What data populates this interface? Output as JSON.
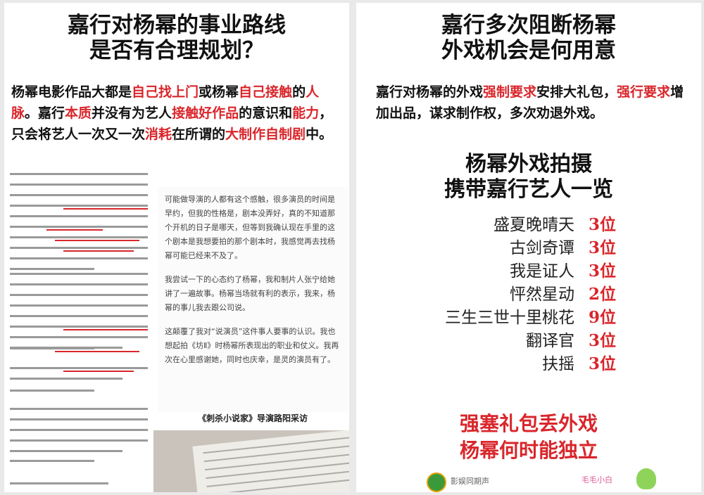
{
  "left": {
    "headline_line1": "嘉行对杨幂的事业路线",
    "headline_line2": "是否有合理规划？",
    "lead_parts": [
      {
        "t": "杨幂电影作品大都是",
        "hl": false
      },
      {
        "t": "自己找上门",
        "hl": true
      },
      {
        "t": "或杨幂",
        "hl": false
      },
      {
        "t": "自己接触",
        "hl": true
      },
      {
        "t": "的",
        "hl": false
      },
      {
        "t": "人脉",
        "hl": true
      },
      {
        "t": "。嘉行",
        "hl": false
      },
      {
        "t": "本质",
        "hl": true
      },
      {
        "t": "并没有为艺人",
        "hl": false
      },
      {
        "t": "接触好作品",
        "hl": true
      },
      {
        "t": "的意识和",
        "hl": false
      },
      {
        "t": "能力",
        "hl": true
      },
      {
        "t": "，只会将艺人一次又一次",
        "hl": false
      },
      {
        "t": "消耗",
        "hl": true
      },
      {
        "t": "在所谓的",
        "hl": false
      },
      {
        "t": "大制作自制剧",
        "hl": true
      },
      {
        "t": "中。",
        "hl": false
      }
    ],
    "article_paragraphs": [
      "可能做导演的人都有这个感触，很多演员的时间是早约，但我的性格是，剧本没弄好，真的不知道那个开机的日子是哪天，但等到我确认现在手里的这个剧本是我想要拍的那个剧本时，我感觉再去找杨幂可能已经来不及了。",
      "我尝试一下的心态约了杨幂，我和制片人张宁给她讲了一遍故事。杨幂当场就有利的表示，我来，杨幂的事儿我去跟公司说。",
      "这颠覆了我对“说演员”这件事人要事的认识。我也想起拍《坊Ⅱ》时杨幂所表现出的职业和仗义。我再次在心里感谢她，同时也庆幸，是灵的演员有了。"
    ],
    "caption": "《刺杀小说家》导演路阳采访"
  },
  "right": {
    "headline_line1": "嘉行多次阻断杨幂",
    "headline_line2": "外戏机会是何用意",
    "lead_parts": [
      {
        "t": "嘉行对杨幂的外戏",
        "hl": false
      },
      {
        "t": "强制要求",
        "hl": true
      },
      {
        "t": "安排大礼包，",
        "hl": false
      },
      {
        "t": "强行要求",
        "hl": true
      },
      {
        "t": "增加出品，谋求制作权，多次劝退外戏。",
        "hl": false
      }
    ],
    "sub_headline_line1": "杨幂外戏拍摄",
    "sub_headline_line2": "携带嘉行艺人一览",
    "dramas": [
      {
        "name": "盛夏晚晴天",
        "count": "3位"
      },
      {
        "name": "古剑奇谭",
        "count": "3位"
      },
      {
        "name": "我是证人",
        "count": "3位"
      },
      {
        "name": "怦然星动",
        "count": "2位"
      },
      {
        "name": "三生三世十里桃花",
        "count": "9位"
      },
      {
        "name": "翻译官",
        "count": "3位"
      },
      {
        "name": "扶摇",
        "count": "3位"
      }
    ],
    "conclusion_line1": "强塞礼包丢外戏",
    "conclusion_line2": "杨幂何时能独立",
    "footer_brand": "影娱同期声",
    "sticker_text": "毛毛小白"
  },
  "colors": {
    "highlight": "#d9262b",
    "text": "#111111"
  }
}
